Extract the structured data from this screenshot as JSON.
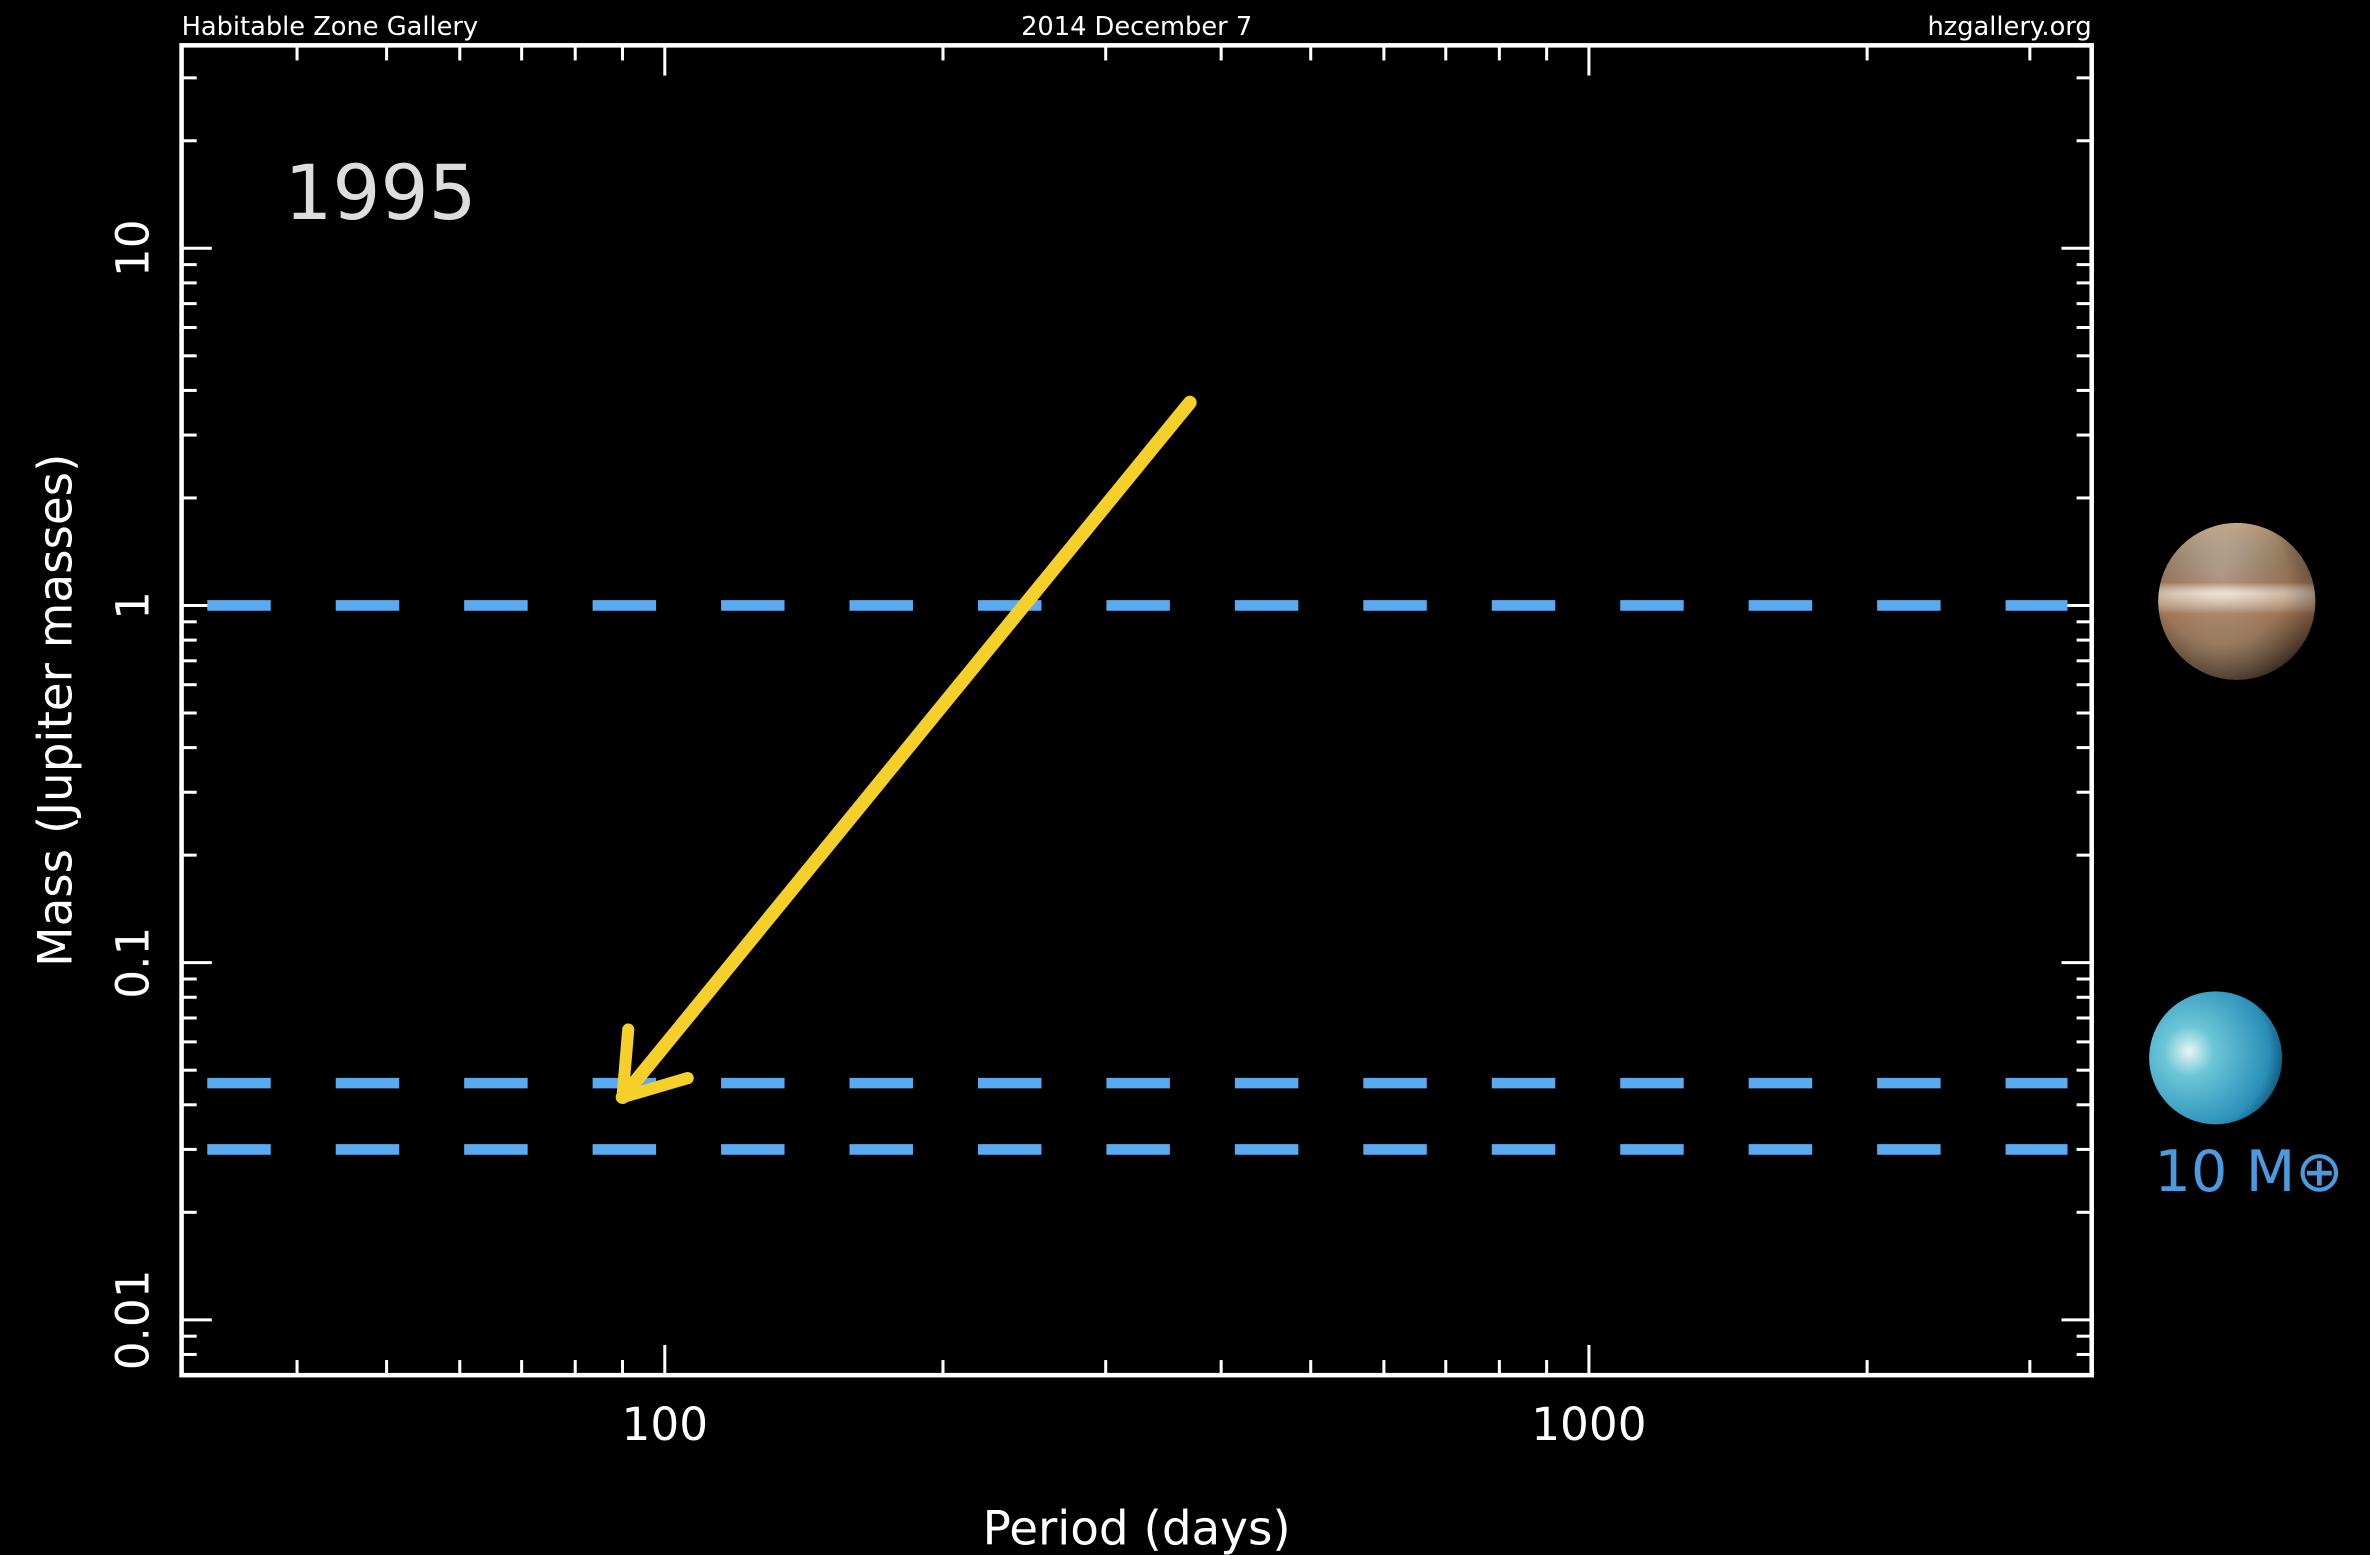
{
  "chart_data": {
    "type": "line",
    "header_left": "Habitable Zone Gallery",
    "header_center": "2014 December 7",
    "header_right": "hzgallery.org",
    "annotation_year": "1995",
    "x_label": "Period (days)",
    "y_label": "Mass (Jupiter masses)",
    "xscale": "log",
    "yscale": "log",
    "xlim": [
      30,
      3500
    ],
    "ylim": [
      0.007,
      37
    ],
    "xticks": [
      100,
      1000
    ],
    "yticks": [
      0.01,
      0.1,
      1,
      10
    ],
    "reference_lines": [
      {
        "value": 1,
        "color": "#5aaaf0"
      },
      {
        "value": 0.046,
        "color": "#5aaaf0"
      },
      {
        "value": 0.03,
        "color": "#5aaaf0"
      }
    ],
    "arrow": {
      "from": [
        370,
        3.7
      ],
      "to": [
        90,
        0.042
      ],
      "color": "#f5cf2a"
    },
    "side_label": "10 M⊕",
    "side_label_color": "#4a9ae0"
  }
}
